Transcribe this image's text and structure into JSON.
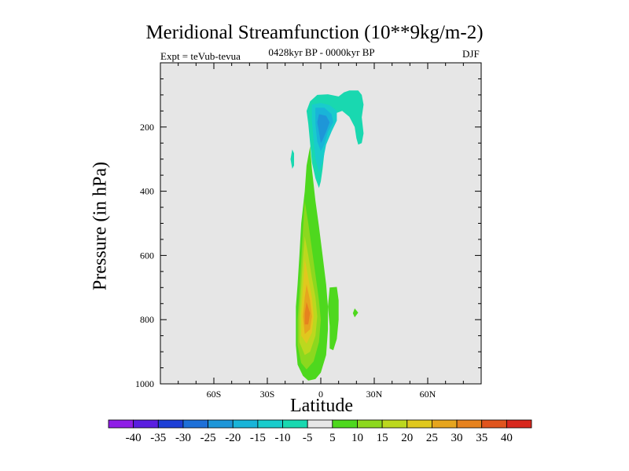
{
  "chart_data": {
    "type": "contour",
    "title": "Meridional Streamfunction (10**9kg/m-2)",
    "subtitle_left": "Expt = teVub-tevua",
    "subtitle_center": "0428kyr BP - 0000kyr BP",
    "subtitle_right": "DJF",
    "xlabel": "Latitude",
    "ylabel": "Pressure (in hPa)",
    "xlim": [
      -90,
      90
    ],
    "ylim": [
      1000,
      0
    ],
    "x_ticks": [
      {
        "value": -60,
        "label": "60S"
      },
      {
        "value": -30,
        "label": "30S"
      },
      {
        "value": 0,
        "label": "0"
      },
      {
        "value": 30,
        "label": "30N"
      },
      {
        "value": 60,
        "label": "60N"
      }
    ],
    "y_ticks": [
      {
        "value": 200,
        "label": "200"
      },
      {
        "value": 400,
        "label": "400"
      },
      {
        "value": 600,
        "label": "600"
      },
      {
        "value": 800,
        "label": "800"
      },
      {
        "value": 1000,
        "label": "1000"
      }
    ],
    "background_color": "#e6e6e6",
    "colorbar": {
      "labels": [
        "-40",
        "-35",
        "-30",
        "-25",
        "-20",
        "-15",
        "-10",
        "-5",
        "5",
        "10",
        "15",
        "20",
        "25",
        "30",
        "35",
        "40"
      ],
      "colors": [
        "#8f1ee6",
        "#5a1ee0",
        "#1e3fd6",
        "#1e70d8",
        "#1e96d8",
        "#19b4d8",
        "#19cccc",
        "#19d8b0",
        "#e6e6e6",
        "#4ed81e",
        "#8cd81e",
        "#bcd81e",
        "#e0c81e",
        "#e6a51e",
        "#e6821e",
        "#e0551e",
        "#d8281e"
      ]
    },
    "regions": [
      {
        "level": -5,
        "color": "#19d8b0",
        "points": [
          [
            -6,
            120
          ],
          [
            -2,
            100
          ],
          [
            4,
            98
          ],
          [
            10,
            105
          ],
          [
            13,
            92
          ],
          [
            16,
            86
          ],
          [
            21,
            86
          ],
          [
            23,
            100
          ],
          [
            24,
            130
          ],
          [
            23,
            170
          ],
          [
            24,
            220
          ],
          [
            23,
            250
          ],
          [
            21,
            255
          ],
          [
            20,
            235
          ],
          [
            19,
            200
          ],
          [
            16,
            168
          ],
          [
            12,
            150
          ],
          [
            8,
            158
          ],
          [
            6,
            180
          ],
          [
            3,
            230
          ],
          [
            2,
            280
          ],
          [
            1,
            330
          ],
          [
            0,
            370
          ],
          [
            -1,
            390
          ],
          [
            -3,
            360
          ],
          [
            -5,
            310
          ],
          [
            -6,
            250
          ],
          [
            -7,
            190
          ],
          [
            -8,
            150
          ]
        ]
      },
      {
        "level": -5,
        "color": "#19d8b0",
        "points": [
          [
            -16,
            270
          ],
          [
            -15,
            282
          ],
          [
            -15,
            320
          ],
          [
            -16,
            330
          ],
          [
            -17,
            300
          ]
        ]
      },
      {
        "level": -10,
        "color": "#19cccc",
        "points": [
          [
            -5,
            130
          ],
          [
            0,
            125
          ],
          [
            5,
            132
          ],
          [
            9,
            150
          ],
          [
            9,
            180
          ],
          [
            6,
            215
          ],
          [
            3,
            255
          ],
          [
            1,
            310
          ],
          [
            -1,
            340
          ],
          [
            -3,
            300
          ],
          [
            -4,
            240
          ],
          [
            -5,
            180
          ]
        ]
      },
      {
        "level": -15,
        "color": "#19b4d8",
        "points": [
          [
            -3,
            140
          ],
          [
            2,
            140
          ],
          [
            6,
            160
          ],
          [
            7,
            185
          ],
          [
            4,
            215
          ],
          [
            2,
            255
          ],
          [
            0,
            275
          ],
          [
            -2,
            245
          ],
          [
            -3,
            190
          ]
        ]
      },
      {
        "level": -20,
        "color": "#1e96d8",
        "points": [
          [
            -1,
            160
          ],
          [
            3,
            165
          ],
          [
            5,
            185
          ],
          [
            3,
            215
          ],
          [
            1,
            240
          ],
          [
            0,
            250
          ],
          [
            -1,
            215
          ],
          [
            -2,
            185
          ]
        ]
      },
      {
        "level": 5,
        "color": "#4ed81e",
        "points": [
          [
            -6,
            260
          ],
          [
            -5,
            330
          ],
          [
            -3,
            430
          ],
          [
            -1,
            510
          ],
          [
            1,
            600
          ],
          [
            3,
            690
          ],
          [
            4,
            760
          ],
          [
            4,
            830
          ],
          [
            3,
            910
          ],
          [
            0,
            965
          ],
          [
            -3,
            985
          ],
          [
            -7,
            990
          ],
          [
            -10,
            975
          ],
          [
            -13,
            940
          ],
          [
            -14,
            880
          ],
          [
            -14,
            820
          ],
          [
            -14,
            760
          ],
          [
            -13,
            690
          ],
          [
            -12,
            600
          ],
          [
            -11,
            500
          ],
          [
            -9,
            400
          ],
          [
            -8,
            320
          ]
        ]
      },
      {
        "level": 5,
        "color": "#4ed81e",
        "points": [
          [
            5,
            700
          ],
          [
            9,
            698
          ],
          [
            10,
            740
          ],
          [
            10,
            800
          ],
          [
            9,
            860
          ],
          [
            7,
            895
          ],
          [
            5,
            890
          ],
          [
            5,
            820
          ],
          [
            4,
            760
          ]
        ]
      },
      {
        "level": 5,
        "color": "#4ed81e",
        "points": [
          [
            19,
            765
          ],
          [
            21,
            778
          ],
          [
            19,
            793
          ],
          [
            18,
            780
          ]
        ]
      },
      {
        "level": 10,
        "color": "#8cd81e",
        "points": [
          [
            -9,
            430
          ],
          [
            -7,
            500
          ],
          [
            -5,
            580
          ],
          [
            -3,
            660
          ],
          [
            -1,
            740
          ],
          [
            0,
            800
          ],
          [
            -1,
            870
          ],
          [
            -4,
            930
          ],
          [
            -8,
            955
          ],
          [
            -11,
            935
          ],
          [
            -13,
            880
          ],
          [
            -13,
            800
          ],
          [
            -12,
            720
          ],
          [
            -11,
            620
          ],
          [
            -10,
            520
          ]
        ]
      },
      {
        "level": 15,
        "color": "#bcd81e",
        "points": [
          [
            -9,
            540
          ],
          [
            -7,
            600
          ],
          [
            -5,
            670
          ],
          [
            -3,
            730
          ],
          [
            -2,
            790
          ],
          [
            -3,
            850
          ],
          [
            -6,
            900
          ],
          [
            -9,
            910
          ],
          [
            -12,
            870
          ],
          [
            -12,
            790
          ],
          [
            -11,
            700
          ],
          [
            -10,
            610
          ]
        ]
      },
      {
        "level": 20,
        "color": "#e0c81e",
        "points": [
          [
            -9,
            610
          ],
          [
            -7,
            670
          ],
          [
            -5,
            730
          ],
          [
            -4,
            790
          ],
          [
            -5,
            840
          ],
          [
            -8,
            875
          ],
          [
            -11,
            850
          ],
          [
            -11,
            780
          ],
          [
            -10,
            700
          ]
        ]
      },
      {
        "level": 25,
        "color": "#e6a51e",
        "points": [
          [
            -8,
            690
          ],
          [
            -6,
            740
          ],
          [
            -5,
            790
          ],
          [
            -6,
            830
          ],
          [
            -9,
            845
          ],
          [
            -10,
            790
          ],
          [
            -9,
            730
          ]
        ]
      },
      {
        "level": 30,
        "color": "#e6821e",
        "points": [
          [
            -8,
            745
          ],
          [
            -6,
            780
          ],
          [
            -7,
            815
          ],
          [
            -9,
            815
          ],
          [
            -9,
            780
          ]
        ]
      }
    ]
  }
}
